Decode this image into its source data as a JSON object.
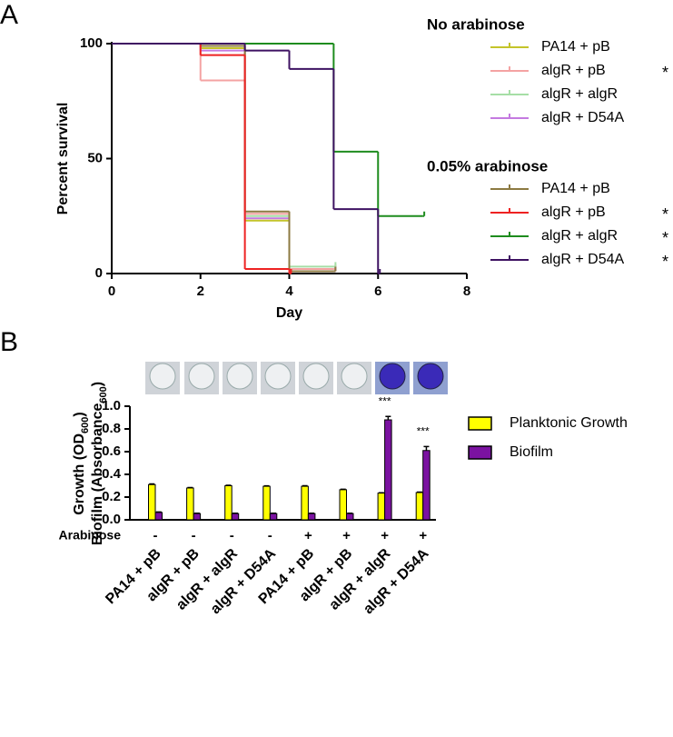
{
  "chart_data": [
    {
      "type": "step",
      "panel": "A",
      "xlabel": "Day",
      "ylabel": "Percent survival",
      "xlim": [
        0,
        8
      ],
      "xticks": [
        0,
        2,
        4,
        6,
        8
      ],
      "ylim": [
        0,
        100
      ],
      "yticks": [
        0,
        50,
        100
      ],
      "groups": [
        {
          "title": "No arabinose",
          "series": [
            {
              "name": "PA14 + pB",
              "color": "#c4c42a",
              "x": [
                0,
                2,
                3,
                4,
                5
              ],
              "values": [
                100,
                98,
                23,
                1,
                1
              ]
            },
            {
              "name": "algR + pB",
              "color": "#f4a3a3",
              "x": [
                0,
                2,
                3,
                4,
                5
              ],
              "values": [
                100,
                84,
                26,
                2,
                2
              ],
              "mark": "*"
            },
            {
              "name": "algR + algR",
              "color": "#a6dea6",
              "x": [
                0,
                2,
                3,
                4,
                5
              ],
              "values": [
                100,
                99,
                25,
                3,
                3
              ]
            },
            {
              "name": "algR + D54A",
              "color": "#c47ae0",
              "x": [
                0,
                2,
                3,
                4,
                5
              ],
              "values": [
                100,
                97,
                24,
                1,
                1
              ]
            }
          ]
        },
        {
          "title": "0.05% arabinose",
          "series": [
            {
              "name": "PA14 + pB",
              "color": "#8c7a42",
              "x": [
                0,
                2,
                3,
                4,
                5
              ],
              "values": [
                100,
                99,
                27,
                1,
                1
              ]
            },
            {
              "name": "algR + pB",
              "color": "#ee2222",
              "x": [
                0,
                2,
                3,
                4
              ],
              "values": [
                100,
                95,
                2,
                0
              ],
              "mark": "*"
            },
            {
              "name": "algR + algR",
              "color": "#1e8c1e",
              "x": [
                0,
                5,
                6,
                7
              ],
              "values": [
                100,
                53,
                25,
                25
              ],
              "mark": "*"
            },
            {
              "name": "algR + D54A",
              "color": "#3e1262",
              "x": [
                0,
                3,
                4,
                5,
                6
              ],
              "values": [
                100,
                97,
                89,
                28,
                0
              ],
              "mark": "*"
            }
          ]
        }
      ]
    },
    {
      "type": "bar",
      "panel": "B",
      "ylabel_lines": [
        [
          "Growth (OD",
          "600",
          ")"
        ],
        [
          "Biofilm (Absorbance",
          "600",
          ")"
        ]
      ],
      "categories": [
        "PA14 + pB",
        "algR + pB",
        "algR + algR",
        "algR + D54A",
        "PA14 + pB",
        "algR + pB",
        "algR + algR",
        "algR + D54A"
      ],
      "row_label": "Arabinose",
      "row_values": [
        "-",
        "-",
        "-",
        "-",
        "+",
        "+",
        "+",
        "+"
      ],
      "ylim": [
        0,
        1
      ],
      "yticks": [
        {
          "value": 0,
          "label": "0.0"
        },
        {
          "value": 0.2,
          "label": "0.2"
        },
        {
          "value": 0.4,
          "label": "0.4"
        },
        {
          "value": 0.6,
          "label": "0.6"
        },
        {
          "value": 0.8,
          "label": "0.8"
        },
        {
          "value": 1,
          "label": "1.0"
        }
      ],
      "series": [
        {
          "name": "Planktonic Growth",
          "color": "#ffff00",
          "values": [
            0.31,
            0.28,
            0.3,
            0.295,
            0.295,
            0.265,
            0.235,
            0.24
          ],
          "errors": [
            0.006,
            0.004,
            0.004,
            0.004,
            0.005,
            0.004,
            0.003,
            0.004
          ]
        },
        {
          "name": "Biofilm",
          "color": "#7b12a1",
          "values": [
            0.065,
            0.055,
            0.055,
            0.055,
            0.055,
            0.055,
            0.88,
            0.61
          ],
          "errors": [
            0.004,
            0.003,
            0.003,
            0.003,
            0.003,
            0.003,
            0.03,
            0.035
          ],
          "value_annotations": [
            null,
            null,
            null,
            null,
            null,
            null,
            "***",
            "***"
          ]
        }
      ]
    }
  ]
}
